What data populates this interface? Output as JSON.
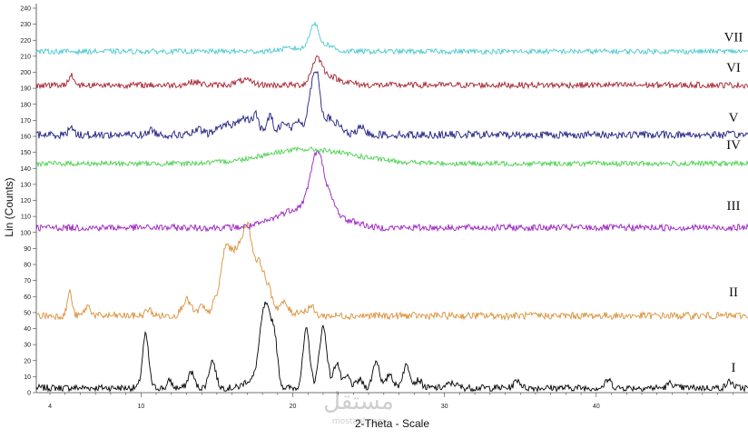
{
  "chart_data": {
    "type": "line",
    "title": "",
    "xlabel": "2-Theta - Scale",
    "ylabel": "Lin (Counts)",
    "xlim": [
      3.1,
      50
    ],
    "ylim": [
      0,
      240
    ],
    "x_ticks": [
      4,
      10,
      20,
      30,
      40
    ],
    "y_ticks": [
      0,
      10,
      20,
      30,
      40,
      50,
      60,
      70,
      80,
      90,
      100,
      110,
      120,
      130,
      140,
      150,
      160,
      170,
      180,
      190,
      200,
      210,
      220,
      230,
      240
    ],
    "grid": false,
    "series": [
      {
        "name": "I",
        "color": "#000000",
        "baseline": 3,
        "noise": 1.3,
        "label_y": 16,
        "peaks": [
          [
            10.3,
            33,
            0.2
          ],
          [
            11.9,
            5,
            0.12
          ],
          [
            13.3,
            10,
            0.2
          ],
          [
            14.7,
            17,
            0.22
          ],
          [
            17.0,
            4,
            0.3
          ],
          [
            18.2,
            52,
            0.38
          ],
          [
            18.8,
            22,
            0.2
          ],
          [
            20.9,
            36,
            0.22
          ],
          [
            22.0,
            38,
            0.25
          ],
          [
            22.9,
            16,
            0.2
          ],
          [
            23.6,
            7,
            0.2
          ],
          [
            24.4,
            5,
            0.2
          ],
          [
            25.5,
            17,
            0.22
          ],
          [
            26.4,
            9,
            0.2
          ],
          [
            27.5,
            14,
            0.25
          ],
          [
            28.3,
            5,
            0.2
          ],
          [
            30.5,
            3,
            0.3
          ],
          [
            34.8,
            5,
            0.2
          ],
          [
            40.8,
            5,
            0.2
          ],
          [
            44.9,
            3,
            0.2
          ],
          [
            48.8,
            4,
            0.2
          ]
        ]
      },
      {
        "name": "II",
        "color": "#d9913a",
        "baseline": 48,
        "noise": 1.4,
        "label_y": 63,
        "peaks": [
          [
            5.3,
            15,
            0.15
          ],
          [
            6.5,
            6,
            0.2
          ],
          [
            10.5,
            4,
            0.2
          ],
          [
            13.0,
            10,
            0.3
          ],
          [
            14.0,
            6,
            0.2
          ],
          [
            14.8,
            6,
            0.2
          ],
          [
            15.6,
            42,
            0.35
          ],
          [
            16.3,
            30,
            0.3
          ],
          [
            17.0,
            55,
            0.35
          ],
          [
            17.8,
            28,
            0.3
          ],
          [
            18.4,
            15,
            0.3
          ],
          [
            19.4,
            8,
            0.3
          ],
          [
            20.5,
            3,
            0.3
          ],
          [
            21.2,
            6,
            0.2
          ]
        ]
      },
      {
        "name": "III",
        "color": "#9a1fbf",
        "baseline": 103,
        "noise": 1.3,
        "label_y": 117,
        "peaks": [
          [
            20.5,
            12,
            1.5
          ],
          [
            21.6,
            36,
            0.45
          ],
          [
            22.5,
            10,
            0.5
          ],
          [
            24.0,
            3,
            0.6
          ]
        ]
      },
      {
        "name": "IV",
        "color": "#44d14a",
        "baseline": 143,
        "noise": 1.0,
        "label_y": 155,
        "peaks": [
          [
            20.5,
            8,
            2.6
          ],
          [
            24.0,
            2,
            2.5
          ]
        ]
      },
      {
        "name": "V",
        "color": "#1f1f80",
        "baseline": 161,
        "noise": 1.5,
        "label_y": 172,
        "peaks": [
          [
            5.4,
            6,
            0.15
          ],
          [
            10.7,
            3,
            0.2
          ],
          [
            13.8,
            3,
            0.3
          ],
          [
            15.5,
            6,
            0.5
          ],
          [
            16.8,
            10,
            0.5
          ],
          [
            17.6,
            10,
            0.2
          ],
          [
            18.5,
            12,
            0.2
          ],
          [
            19.4,
            8,
            0.3
          ],
          [
            20.4,
            9,
            0.3
          ],
          [
            21.2,
            23,
            0.22
          ],
          [
            21.6,
            35,
            0.22
          ],
          [
            22.3,
            10,
            0.3
          ],
          [
            23.0,
            6,
            0.3
          ],
          [
            24.5,
            4,
            0.3
          ]
        ]
      },
      {
        "name": "VI",
        "color": "#a5202e",
        "baseline": 192,
        "noise": 1.2,
        "label_y": 203,
        "peaks": [
          [
            5.4,
            7,
            0.15
          ],
          [
            13.5,
            2,
            0.4
          ],
          [
            16.8,
            3,
            0.5
          ],
          [
            21.6,
            17,
            0.35
          ],
          [
            22.5,
            5,
            0.4
          ],
          [
            23.5,
            2,
            0.5
          ]
        ]
      },
      {
        "name": "VII",
        "color": "#49c9cf",
        "baseline": 213,
        "noise": 1.0,
        "label_y": 222,
        "peaks": [
          [
            21.4,
            17,
            0.3
          ],
          [
            22.3,
            4,
            0.4
          ],
          [
            20.0,
            2,
            0.8
          ]
        ]
      }
    ]
  },
  "watermark": {
    "text": "مستقل",
    "subtext": "mostaql.com"
  }
}
